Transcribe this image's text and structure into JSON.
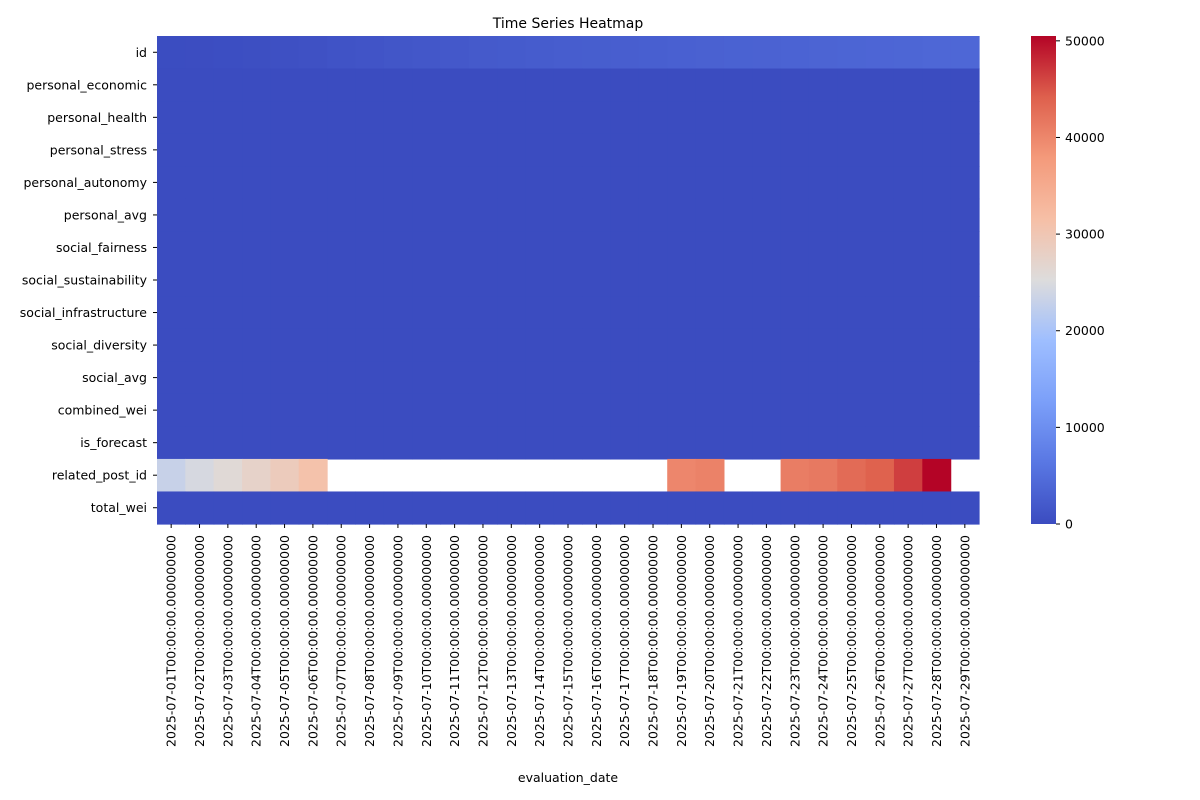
{
  "chart_data": {
    "type": "heatmap",
    "title": "Time Series Heatmap",
    "xlabel": "evaluation_date",
    "ylabel": "",
    "rows": [
      "id",
      "personal_economic",
      "personal_health",
      "personal_stress",
      "personal_autonomy",
      "personal_avg",
      "social_fairness",
      "social_sustainability",
      "social_infrastructure",
      "social_diversity",
      "social_avg",
      "combined_wei",
      "is_forecast",
      "related_post_id",
      "total_wei"
    ],
    "columns": [
      "2025-07-01T00:00:00.000000000",
      "2025-07-02T00:00:00.000000000",
      "2025-07-03T00:00:00.000000000",
      "2025-07-04T00:00:00.000000000",
      "2025-07-05T00:00:00.000000000",
      "2025-07-06T00:00:00.000000000",
      "2025-07-07T00:00:00.000000000",
      "2025-07-08T00:00:00.000000000",
      "2025-07-09T00:00:00.000000000",
      "2025-07-10T00:00:00.000000000",
      "2025-07-11T00:00:00.000000000",
      "2025-07-12T00:00:00.000000000",
      "2025-07-13T00:00:00.000000000",
      "2025-07-14T00:00:00.000000000",
      "2025-07-15T00:00:00.000000000",
      "2025-07-16T00:00:00.000000000",
      "2025-07-17T00:00:00.000000000",
      "2025-07-18T00:00:00.000000000",
      "2025-07-19T00:00:00.000000000",
      "2025-07-20T00:00:00.000000000",
      "2025-07-21T00:00:00.000000000",
      "2025-07-22T00:00:00.000000000",
      "2025-07-23T00:00:00.000000000",
      "2025-07-24T00:00:00.000000000",
      "2025-07-25T00:00:00.000000000",
      "2025-07-26T00:00:00.000000000",
      "2025-07-27T00:00:00.000000000",
      "2025-07-28T00:00:00.000000000",
      "2025-07-29T00:00:00.000000000"
    ],
    "values": [
      [
        100,
        200,
        300,
        400,
        600,
        800,
        1000,
        1200,
        1400,
        1600,
        1800,
        2000,
        2200,
        2400,
        2500,
        2600,
        2700,
        2800,
        3000,
        3100,
        3200,
        3300,
        3400,
        3500,
        3600,
        3700,
        3800,
        3900,
        4000
      ],
      [
        0,
        0,
        0,
        0,
        0,
        0,
        0,
        0,
        0,
        0,
        0,
        0,
        0,
        0,
        0,
        0,
        0,
        0,
        0,
        0,
        0,
        0,
        0,
        0,
        0,
        0,
        0,
        0,
        0
      ],
      [
        0,
        0,
        0,
        0,
        0,
        0,
        0,
        0,
        0,
        0,
        0,
        0,
        0,
        0,
        0,
        0,
        0,
        0,
        0,
        0,
        0,
        0,
        0,
        0,
        0,
        0,
        0,
        0,
        0
      ],
      [
        0,
        0,
        0,
        0,
        0,
        0,
        0,
        0,
        0,
        0,
        0,
        0,
        0,
        0,
        0,
        0,
        0,
        0,
        0,
        0,
        0,
        0,
        0,
        0,
        0,
        0,
        0,
        0,
        0
      ],
      [
        0,
        0,
        0,
        0,
        0,
        0,
        0,
        0,
        0,
        0,
        0,
        0,
        0,
        0,
        0,
        0,
        0,
        0,
        0,
        0,
        0,
        0,
        0,
        0,
        0,
        0,
        0,
        0,
        0
      ],
      [
        0,
        0,
        0,
        0,
        0,
        0,
        0,
        0,
        0,
        0,
        0,
        0,
        0,
        0,
        0,
        0,
        0,
        0,
        0,
        0,
        0,
        0,
        0,
        0,
        0,
        0,
        0,
        0,
        0
      ],
      [
        0,
        0,
        0,
        0,
        0,
        0,
        0,
        0,
        0,
        0,
        0,
        0,
        0,
        0,
        0,
        0,
        0,
        0,
        0,
        0,
        0,
        0,
        0,
        0,
        0,
        0,
        0,
        0,
        0
      ],
      [
        0,
        0,
        0,
        0,
        0,
        0,
        0,
        0,
        0,
        0,
        0,
        0,
        0,
        0,
        0,
        0,
        0,
        0,
        0,
        0,
        0,
        0,
        0,
        0,
        0,
        0,
        0,
        0,
        0
      ],
      [
        0,
        0,
        0,
        0,
        0,
        0,
        0,
        0,
        0,
        0,
        0,
        0,
        0,
        0,
        0,
        0,
        0,
        0,
        0,
        0,
        0,
        0,
        0,
        0,
        0,
        0,
        0,
        0,
        0
      ],
      [
        0,
        0,
        0,
        0,
        0,
        0,
        0,
        0,
        0,
        0,
        0,
        0,
        0,
        0,
        0,
        0,
        0,
        0,
        0,
        0,
        0,
        0,
        0,
        0,
        0,
        0,
        0,
        0,
        0
      ],
      [
        0,
        0,
        0,
        0,
        0,
        0,
        0,
        0,
        0,
        0,
        0,
        0,
        0,
        0,
        0,
        0,
        0,
        0,
        0,
        0,
        0,
        0,
        0,
        0,
        0,
        0,
        0,
        0,
        0
      ],
      [
        0,
        0,
        0,
        0,
        0,
        0,
        0,
        0,
        0,
        0,
        0,
        0,
        0,
        0,
        0,
        0,
        0,
        0,
        0,
        0,
        0,
        0,
        0,
        0,
        0,
        0,
        0,
        0,
        0
      ],
      [
        0,
        0,
        0,
        0,
        0,
        0,
        0,
        0,
        0,
        0,
        0,
        0,
        0,
        0,
        0,
        0,
        0,
        0,
        0,
        0,
        0,
        0,
        0,
        0,
        0,
        0,
        0,
        0,
        0
      ],
      [
        23000,
        24500,
        26000,
        27500,
        29000,
        31000,
        null,
        null,
        null,
        null,
        null,
        null,
        null,
        null,
        null,
        null,
        null,
        null,
        40000,
        40500,
        null,
        null,
        41000,
        41500,
        43000,
        44000,
        46500,
        50500,
        null
      ],
      [
        0,
        0,
        0,
        0,
        0,
        0,
        0,
        0,
        0,
        0,
        0,
        0,
        0,
        0,
        0,
        0,
        0,
        0,
        0,
        0,
        0,
        0,
        0,
        0,
        0,
        0,
        0,
        0,
        0
      ]
    ],
    "colormap": "coolwarm",
    "vmin": 0,
    "vmax": 50500,
    "colorbar_ticks": [
      0,
      10000,
      20000,
      30000,
      40000,
      50000
    ],
    "colorbar_labels": [
      "0",
      "10000",
      "20000",
      "30000",
      "40000",
      "50000"
    ],
    "grid": false
  }
}
